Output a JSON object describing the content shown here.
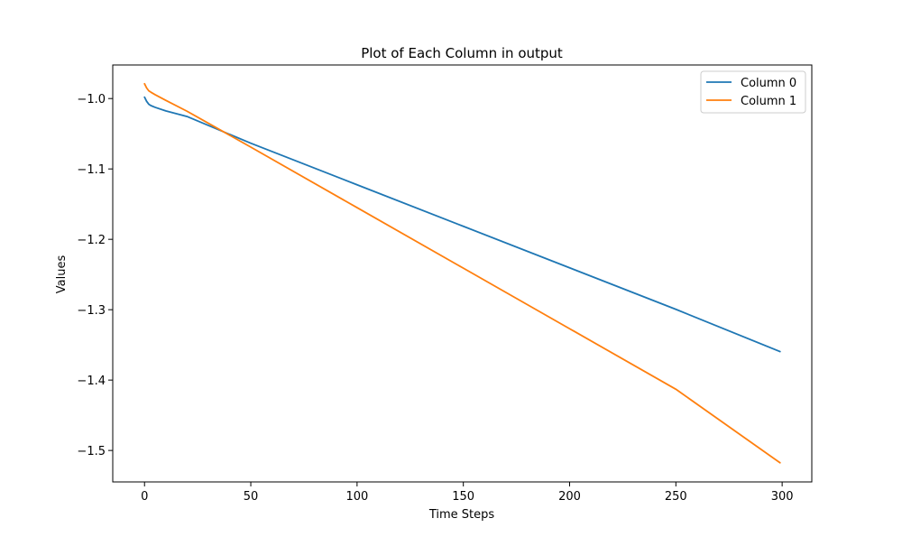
{
  "chart_data": {
    "type": "line",
    "title": "Plot of Each Column in output",
    "xlabel": "Time Steps",
    "ylabel": "Values",
    "xlim": [
      -14.95,
      313.95
    ],
    "ylim": [
      -1.5447,
      -0.9523
    ],
    "xticks": [
      0,
      50,
      100,
      150,
      200,
      250,
      300
    ],
    "yticks": [
      -1.0,
      -1.1,
      -1.2,
      -1.3,
      -1.4,
      -1.5
    ],
    "xtick_labels": [
      "0",
      "50",
      "100",
      "150",
      "200",
      "250",
      "300"
    ],
    "ytick_labels": [
      "−1.0",
      "−1.1",
      "−1.2",
      "−1.3",
      "−1.4",
      "−1.5"
    ],
    "grid": false,
    "legend_position": "top-right",
    "series": [
      {
        "name": "Column 0",
        "color": "#1f77b4",
        "x": [
          0,
          1,
          2,
          3,
          5,
          10,
          20,
          50,
          100,
          150,
          200,
          250,
          299
        ],
        "y": [
          -0.998,
          -1.004,
          -1.008,
          -1.01,
          -1.0125,
          -1.0175,
          -1.0255,
          -1.0635,
          -1.1225,
          -1.1815,
          -1.2405,
          -1.2995,
          -1.3595
        ]
      },
      {
        "name": "Column 1",
        "color": "#ff7f0e",
        "x": [
          0,
          1,
          2,
          3,
          5,
          10,
          20,
          50,
          100,
          150,
          200,
          250,
          299
        ],
        "y": [
          -0.979,
          -0.985,
          -0.989,
          -0.991,
          -0.9945,
          -1.0025,
          -1.018,
          -1.069,
          -1.155,
          -1.241,
          -1.327,
          -1.413,
          -1.5175
        ]
      }
    ]
  }
}
